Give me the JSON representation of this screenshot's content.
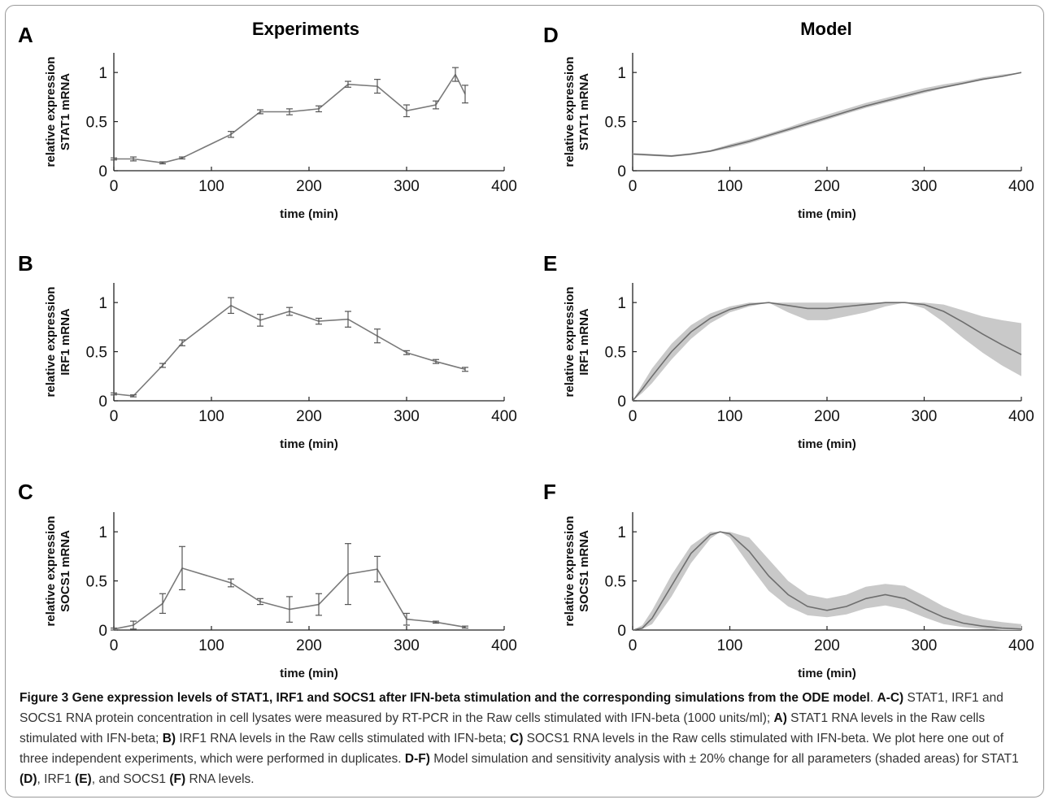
{
  "figure": {
    "column_titles": {
      "left": "Experiments",
      "right": "Model"
    },
    "caption": {
      "title": "Figure 3 Gene expression levels of STAT1, IRF1 and SOCS1 after IFN-beta stimulation and the corresponding simulations from the ODE model",
      "segments": [
        {
          "t": ". ",
          "b": false
        },
        {
          "t": "A-C)",
          "b": true
        },
        {
          "t": " STAT1, IRF1 and SOCS1 RNA protein concentration in cell lysates were measured by RT-PCR in the Raw cells stimulated with IFN-beta (1000 units/ml); ",
          "b": false
        },
        {
          "t": "A)",
          "b": true
        },
        {
          "t": " STAT1 RNA levels in the Raw cells stimulated with IFN-beta; ",
          "b": false
        },
        {
          "t": "B)",
          "b": true
        },
        {
          "t": " IRF1 RNA levels in the Raw cells stimulated with IFN-beta; ",
          "b": false
        },
        {
          "t": "C)",
          "b": true
        },
        {
          "t": " SOCS1 RNA levels in the Raw cells stimulated with IFN-beta. We plot here one out of three independent experiments, which were performed in duplicates. ",
          "b": false
        },
        {
          "t": "D-F)",
          "b": true
        },
        {
          "t": " Model simulation and sensitivity analysis with ± 20% change for all parameters (shaded areas) for STAT1 ",
          "b": false
        },
        {
          "t": "(D)",
          "b": true
        },
        {
          "t": ", IRF1 ",
          "b": false
        },
        {
          "t": "(E)",
          "b": true
        },
        {
          "t": ", and SOCS1 ",
          "b": false
        },
        {
          "t": "(F)",
          "b": true
        },
        {
          "t": " RNA levels.",
          "b": false
        }
      ]
    }
  },
  "chart_data": [
    {
      "panel": "A",
      "type": "line",
      "xlabel": "time (min)",
      "ylabel": [
        "relative expression",
        "STAT1 mRNA"
      ],
      "xlim": [
        0,
        400
      ],
      "ylim": [
        0,
        1.2
      ],
      "xticks": [
        0,
        100,
        200,
        300,
        400
      ],
      "yticks": [
        0,
        0.5,
        1
      ],
      "ytick_labels": [
        "0",
        "0.5",
        "1"
      ],
      "x": [
        0,
        20,
        50,
        70,
        120,
        150,
        180,
        210,
        240,
        270,
        300,
        330,
        350,
        360
      ],
      "y": [
        0.12,
        0.12,
        0.08,
        0.13,
        0.37,
        0.6,
        0.6,
        0.63,
        0.88,
        0.86,
        0.61,
        0.67,
        0.98,
        0.78
      ],
      "err": [
        0.01,
        0.02,
        0.01,
        0.01,
        0.03,
        0.02,
        0.03,
        0.03,
        0.03,
        0.07,
        0.06,
        0.04,
        0.07,
        0.09
      ]
    },
    {
      "panel": "B",
      "type": "line",
      "xlabel": "time (min)",
      "ylabel": [
        "relative expression",
        "IRF1 mRNA"
      ],
      "xlim": [
        0,
        400
      ],
      "ylim": [
        0,
        1.2
      ],
      "xticks": [
        0,
        100,
        200,
        300,
        400
      ],
      "yticks": [
        0,
        0.5,
        1
      ],
      "ytick_labels": [
        "0",
        "0.5",
        "1"
      ],
      "x": [
        0,
        20,
        50,
        70,
        120,
        150,
        180,
        210,
        240,
        270,
        300,
        330,
        360
      ],
      "y": [
        0.07,
        0.05,
        0.36,
        0.59,
        0.97,
        0.82,
        0.91,
        0.81,
        0.83,
        0.66,
        0.49,
        0.4,
        0.32
      ],
      "err": [
        0.01,
        0.01,
        0.02,
        0.03,
        0.08,
        0.06,
        0.04,
        0.03,
        0.08,
        0.07,
        0.02,
        0.02,
        0.02
      ]
    },
    {
      "panel": "C",
      "type": "line",
      "xlabel": "time (min)",
      "ylabel": [
        "relative expression",
        "SOCS1 mRNA"
      ],
      "xlim": [
        0,
        400
      ],
      "ylim": [
        0,
        1.2
      ],
      "xticks": [
        0,
        100,
        200,
        300,
        400
      ],
      "yticks": [
        0,
        0.5,
        1
      ],
      "ytick_labels": [
        "0",
        "0.5",
        "1"
      ],
      "x": [
        0,
        20,
        50,
        70,
        120,
        150,
        180,
        210,
        240,
        270,
        300,
        330,
        360
      ],
      "y": [
        0.01,
        0.05,
        0.27,
        0.63,
        0.48,
        0.29,
        0.21,
        0.26,
        0.57,
        0.62,
        0.11,
        0.08,
        0.03
      ],
      "err": [
        0.01,
        0.04,
        0.1,
        0.22,
        0.04,
        0.03,
        0.13,
        0.11,
        0.31,
        0.13,
        0.06,
        0.01,
        0.01
      ]
    },
    {
      "panel": "D",
      "type": "area",
      "xlabel": "time (min)",
      "ylabel": [
        "relative expression",
        "STAT1 mRNA"
      ],
      "xlim": [
        0,
        400
      ],
      "ylim": [
        0,
        1.2
      ],
      "xticks": [
        0,
        100,
        200,
        300,
        400
      ],
      "yticks": [
        0,
        0.5,
        1
      ],
      "ytick_labels": [
        "0",
        "0.5",
        "1"
      ],
      "x": [
        0,
        20,
        40,
        60,
        80,
        100,
        120,
        140,
        160,
        180,
        200,
        220,
        240,
        260,
        280,
        300,
        320,
        340,
        360,
        380,
        400
      ],
      "y": [
        0.17,
        0.16,
        0.15,
        0.17,
        0.2,
        0.25,
        0.3,
        0.36,
        0.42,
        0.48,
        0.54,
        0.6,
        0.66,
        0.71,
        0.76,
        0.81,
        0.85,
        0.89,
        0.93,
        0.96,
        1.0
      ],
      "lower": [
        0.16,
        0.15,
        0.14,
        0.16,
        0.19,
        0.23,
        0.28,
        0.34,
        0.4,
        0.46,
        0.52,
        0.58,
        0.64,
        0.69,
        0.74,
        0.79,
        0.84,
        0.88,
        0.92,
        0.96,
        1.0
      ],
      "upper": [
        0.18,
        0.17,
        0.16,
        0.18,
        0.21,
        0.27,
        0.32,
        0.38,
        0.44,
        0.51,
        0.57,
        0.63,
        0.69,
        0.74,
        0.79,
        0.84,
        0.88,
        0.91,
        0.95,
        0.98,
        1.0
      ]
    },
    {
      "panel": "E",
      "type": "area",
      "xlabel": "time (min)",
      "ylabel": [
        "relative expression",
        "IRF1 mRNA"
      ],
      "xlim": [
        0,
        400
      ],
      "ylim": [
        0,
        1.2
      ],
      "xticks": [
        0,
        100,
        200,
        300,
        400
      ],
      "yticks": [
        0,
        0.5,
        1
      ],
      "ytick_labels": [
        "0",
        "0.5",
        "1"
      ],
      "x": [
        0,
        10,
        20,
        40,
        60,
        80,
        100,
        120,
        140,
        160,
        180,
        200,
        220,
        240,
        260,
        280,
        300,
        320,
        340,
        360,
        380,
        400
      ],
      "y": [
        0.0,
        0.12,
        0.25,
        0.5,
        0.7,
        0.84,
        0.93,
        0.98,
        1.0,
        0.97,
        0.94,
        0.94,
        0.96,
        0.98,
        1.0,
        1.0,
        0.98,
        0.91,
        0.8,
        0.68,
        0.57,
        0.47
      ],
      "lower": [
        0.0,
        0.08,
        0.18,
        0.42,
        0.63,
        0.79,
        0.9,
        0.96,
        1.0,
        0.9,
        0.82,
        0.82,
        0.86,
        0.9,
        0.96,
        1.0,
        0.94,
        0.8,
        0.64,
        0.49,
        0.36,
        0.25
      ],
      "upper": [
        0.0,
        0.17,
        0.33,
        0.58,
        0.77,
        0.89,
        0.96,
        1.0,
        1.0,
        1.0,
        1.0,
        1.0,
        1.0,
        1.0,
        1.0,
        1.0,
        1.0,
        0.98,
        0.92,
        0.86,
        0.82,
        0.79
      ]
    },
    {
      "panel": "F",
      "type": "area",
      "xlabel": "time (min)",
      "ylabel": [
        "relative expression",
        "SOCS1 mRNA"
      ],
      "xlim": [
        0,
        400
      ],
      "ylim": [
        0,
        1.2
      ],
      "xticks": [
        0,
        100,
        200,
        300,
        400
      ],
      "yticks": [
        0,
        0.5,
        1
      ],
      "ytick_labels": [
        "0",
        "0.5",
        "1"
      ],
      "x": [
        0,
        10,
        20,
        40,
        60,
        80,
        90,
        100,
        120,
        140,
        160,
        180,
        200,
        220,
        240,
        260,
        280,
        300,
        320,
        340,
        360,
        380,
        400
      ],
      "y": [
        0.0,
        0.02,
        0.12,
        0.45,
        0.78,
        0.97,
        1.0,
        0.98,
        0.8,
        0.55,
        0.36,
        0.24,
        0.2,
        0.24,
        0.32,
        0.36,
        0.32,
        0.22,
        0.13,
        0.07,
        0.04,
        0.02,
        0.01
      ],
      "lower": [
        0.0,
        0.01,
        0.06,
        0.34,
        0.68,
        0.93,
        1.0,
        0.94,
        0.66,
        0.4,
        0.24,
        0.15,
        0.13,
        0.16,
        0.22,
        0.25,
        0.21,
        0.13,
        0.06,
        0.03,
        0.01,
        0.0,
        0.0
      ],
      "upper": [
        0.0,
        0.05,
        0.2,
        0.56,
        0.86,
        1.0,
        1.0,
        1.0,
        0.94,
        0.72,
        0.5,
        0.36,
        0.32,
        0.36,
        0.44,
        0.47,
        0.45,
        0.35,
        0.24,
        0.16,
        0.11,
        0.08,
        0.06
      ]
    }
  ]
}
